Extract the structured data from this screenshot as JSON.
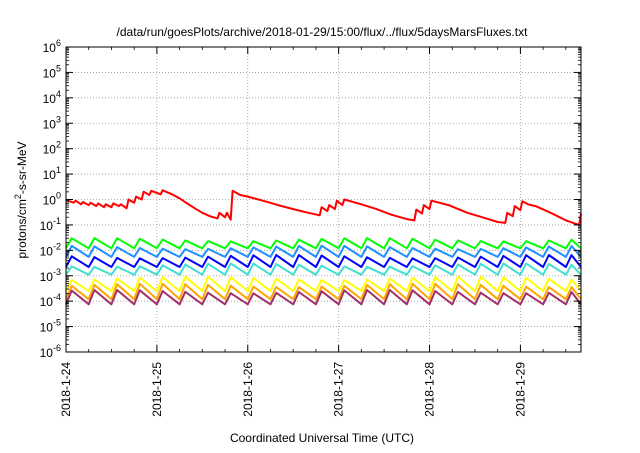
{
  "chart_data": {
    "type": "line",
    "title": "/data/run/goesPlots/archive/2018-01-29/15:00/flux/../flux/5daysMarsFluxes.txt",
    "xlabel": "Coordinated Universal Time (UTC)",
    "ylabel": "protons/cm2-s-sr-MeV",
    "ylabel_parts": {
      "base": "protons/cm",
      "sup": "2",
      "rest": "-s-sr-MeV"
    },
    "yscale": "log",
    "ylim": [
      1e-06,
      1000000.0
    ],
    "xlim": [
      "2018-01-24",
      "2018-01-29T16:00"
    ],
    "x_ticks": [
      "2018-1-24",
      "2018-1-25",
      "2018-1-26",
      "2018-1-27",
      "2018-1-28",
      "2018-1-29"
    ],
    "y_ticks": [
      {
        "exp": "-6"
      },
      {
        "exp": "-5"
      },
      {
        "exp": "-4"
      },
      {
        "exp": "-3"
      },
      {
        "exp": "-2"
      },
      {
        "exp": "-1"
      },
      {
        "exp": "0"
      },
      {
        "exp": "1"
      },
      {
        "exp": "2"
      },
      {
        "exp": "3"
      },
      {
        "exp": "4"
      },
      {
        "exp": "5"
      },
      {
        "exp": "6"
      }
    ],
    "grid": true,
    "legend": "none",
    "series": [
      {
        "color": "#ff0000",
        "points": [
          [
            "2018-01-24T00:00",
            1.0
          ],
          [
            "2018-01-24T01:00",
            0.85
          ],
          [
            "2018-01-24T02:00",
            0.75
          ],
          [
            "2018-01-24T02:30",
            0.9
          ],
          [
            "2018-01-24T04:00",
            0.65
          ],
          [
            "2018-01-24T04:30",
            0.8
          ],
          [
            "2018-01-24T06:00",
            0.6
          ],
          [
            "2018-01-24T06:30",
            0.75
          ],
          [
            "2018-01-24T08:00",
            0.55
          ],
          [
            "2018-01-24T08:30",
            0.7
          ],
          [
            "2018-01-24T10:00",
            0.5
          ],
          [
            "2018-01-24T10:30",
            0.65
          ],
          [
            "2018-01-24T12:00",
            0.5
          ],
          [
            "2018-01-24T12:30",
            0.7
          ],
          [
            "2018-01-24T14:00",
            0.55
          ],
          [
            "2018-01-24T14:30",
            0.65
          ],
          [
            "2018-01-24T16:00",
            0.45
          ],
          [
            "2018-01-24T16:30",
            1.0
          ],
          [
            "2018-01-24T18:00",
            0.75
          ],
          [
            "2018-01-24T18:30",
            1.3
          ],
          [
            "2018-01-24T20:00",
            1.0
          ],
          [
            "2018-01-24T20:30",
            2.0
          ],
          [
            "2018-01-24T22:00",
            1.5
          ],
          [
            "2018-01-24T22:30",
            2.2
          ],
          [
            "2018-01-25T01:00",
            1.6
          ],
          [
            "2018-01-25T01:30",
            2.3
          ],
          [
            "2018-01-25T04:00",
            1.6
          ],
          [
            "2018-01-25T06:00",
            1.1
          ],
          [
            "2018-01-25T08:00",
            0.7
          ],
          [
            "2018-01-25T10:00",
            0.45
          ],
          [
            "2018-01-25T12:00",
            0.3
          ],
          [
            "2018-01-25T14:00",
            0.22
          ],
          [
            "2018-01-25T16:00",
            0.18
          ],
          [
            "2018-01-25T16:30",
            0.3
          ],
          [
            "2018-01-25T18:00",
            0.2
          ],
          [
            "2018-01-25T18:30",
            0.3
          ],
          [
            "2018-01-25T19:30",
            0.16
          ],
          [
            "2018-01-25T20:00",
            2.2
          ],
          [
            "2018-01-25T22:00",
            1.5
          ],
          [
            "2018-01-26T00:00",
            1.3
          ],
          [
            "2018-01-26T04:00",
            0.9
          ],
          [
            "2018-01-26T08:00",
            0.6
          ],
          [
            "2018-01-26T12:00",
            0.42
          ],
          [
            "2018-01-26T16:00",
            0.3
          ],
          [
            "2018-01-26T19:00",
            0.24
          ],
          [
            "2018-01-26T19:30",
            0.5
          ],
          [
            "2018-01-26T21:00",
            0.35
          ],
          [
            "2018-01-26T21:30",
            0.6
          ],
          [
            "2018-01-26T23:00",
            0.42
          ],
          [
            "2018-01-26T23:30",
            0.9
          ],
          [
            "2018-01-27T01:00",
            0.6
          ],
          [
            "2018-01-27T01:30",
            1.0
          ],
          [
            "2018-01-27T06:00",
            0.65
          ],
          [
            "2018-01-27T10:00",
            0.42
          ],
          [
            "2018-01-27T14:00",
            0.25
          ],
          [
            "2018-01-27T18:00",
            0.17
          ],
          [
            "2018-01-27T20:00",
            0.15
          ],
          [
            "2018-01-27T20:30",
            0.4
          ],
          [
            "2018-01-27T22:00",
            0.28
          ],
          [
            "2018-01-27T22:30",
            0.6
          ],
          [
            "2018-01-28T00:00",
            0.42
          ],
          [
            "2018-01-28T00:30",
            0.9
          ],
          [
            "2018-01-28T05:00",
            0.6
          ],
          [
            "2018-01-28T10:00",
            0.3
          ],
          [
            "2018-01-28T14:00",
            0.2
          ],
          [
            "2018-01-28T18:00",
            0.13
          ],
          [
            "2018-01-28T20:00",
            0.12
          ],
          [
            "2018-01-28T20:30",
            0.3
          ],
          [
            "2018-01-28T22:00",
            0.22
          ],
          [
            "2018-01-28T22:30",
            0.55
          ],
          [
            "2018-01-29T00:00",
            0.38
          ],
          [
            "2018-01-29T00:30",
            0.85
          ],
          [
            "2018-01-29T02:00",
            0.65
          ],
          [
            "2018-01-29T04:00",
            0.55
          ],
          [
            "2018-01-29T08:00",
            0.3
          ],
          [
            "2018-01-29T12:00",
            0.15
          ],
          [
            "2018-01-29T15:30",
            0.1
          ],
          [
            "2018-01-29T16:00",
            0.28
          ]
        ]
      },
      {
        "color": "#00ff00",
        "base": 0.012,
        "amplitude": 2.2,
        "period_hours": 6
      },
      {
        "color": "#1e90ff",
        "base": 0.0055,
        "amplitude": 2.4,
        "period_hours": 6
      },
      {
        "color": "#0000ff",
        "base": 0.0022,
        "amplitude": 2.6,
        "period_hours": 6
      },
      {
        "color": "#40e0d0",
        "base": 0.0011,
        "amplitude": 2.4,
        "period_hours": 6
      },
      {
        "color": "#ffff00",
        "base": 0.00025,
        "amplitude": 3.2,
        "period_hours": 6
      },
      {
        "color": "#ffa500",
        "base": 0.00012,
        "amplitude": 3.5,
        "period_hours": 6
      },
      {
        "color": "#a0306a",
        "base": 7.5e-05,
        "amplitude": 3.2,
        "period_hours": 6
      }
    ]
  }
}
